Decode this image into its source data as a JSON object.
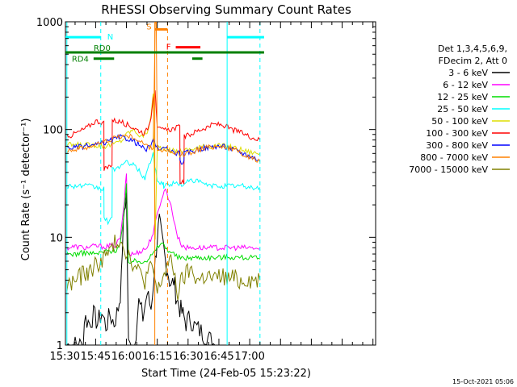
{
  "chart_data": {
    "type": "line",
    "title": "RHESSI Observing Summary Count Rates",
    "xlabel": "Start Time (24-Feb-05 15:23:22)",
    "ylabel": "Count Rate (s⁻¹ detector⁻¹)",
    "yscale": "log",
    "ylim": [
      1,
      1000
    ],
    "xlim_minutes": [
      15.3,
      166.3
    ],
    "x_unit": "minutes after 15:15",
    "x_ticks": [
      {
        "label": "15:30",
        "value": 15
      },
      {
        "label": "15:45",
        "value": 30
      },
      {
        "label": "16:00",
        "value": 45
      },
      {
        "label": "16:15",
        "value": 60
      },
      {
        "label": "16:30",
        "value": 75
      },
      {
        "label": "16:45",
        "value": 90
      },
      {
        "label": "17:00",
        "value": 105
      }
    ],
    "y_ticks": [
      {
        "label": "1",
        "value": 1
      },
      {
        "label": "10",
        "value": 10
      },
      {
        "label": "100",
        "value": 100
      },
      {
        "label": "1000",
        "value": 1000
      }
    ],
    "legend_header": [
      "Det 1,3,4,5,6,9,",
      "FDecim 2, Att 0"
    ],
    "series": [
      {
        "name": "3 - 6 keV",
        "color": "#000000",
        "x": [
          16,
          20,
          24,
          24.5,
          27,
          29,
          31,
          33,
          35,
          37,
          39,
          41,
          42,
          42.5,
          43,
          44,
          45,
          46,
          49,
          51,
          53,
          55,
          57,
          59,
          60,
          61,
          62,
          63,
          64,
          65,
          66,
          67,
          68,
          69,
          70,
          71,
          72,
          73,
          74,
          76,
          78,
          80,
          82,
          84,
          86,
          88,
          90
        ],
        "y": [
          1,
          1,
          1,
          1.8,
          1.6,
          1.9,
          1.6,
          2,
          1.5,
          1.9,
          1.6,
          2.2,
          3,
          4,
          8,
          18,
          25,
          1,
          1,
          2.5,
          1.8,
          3,
          2.2,
          6,
          10,
          14,
          10,
          8,
          6,
          5,
          4,
          3.5,
          4,
          3,
          2.5,
          2.2,
          2,
          1.8,
          1.6,
          1.8,
          1.5,
          1.4,
          1.3,
          1.2,
          1.1,
          1,
          1
        ]
      },
      {
        "name": "6 - 12 keV",
        "color": "#ff00ff",
        "x": [
          16,
          20,
          25,
          30,
          35,
          40,
          42,
          43,
          44,
          45,
          46,
          49,
          52,
          55,
          58,
          60,
          62,
          64,
          66,
          68,
          70,
          72,
          74,
          76,
          78,
          80,
          82,
          84,
          86,
          88,
          90,
          95,
          100,
          105,
          110
        ],
        "y": [
          8,
          8.2,
          8,
          8.3,
          8.2,
          8.5,
          10,
          14,
          22,
          40,
          7,
          7,
          7.5,
          8,
          11,
          16,
          23,
          28,
          22,
          15,
          10,
          8.5,
          8,
          8,
          8,
          8,
          8,
          8,
          8,
          8,
          8,
          8,
          8,
          8,
          7.8
        ]
      },
      {
        "name": "12 - 25 keV",
        "color": "#00dd00",
        "x": [
          16,
          20,
          25,
          30,
          35,
          40,
          42,
          43,
          44,
          45,
          46,
          49,
          52,
          55,
          58,
          60,
          62,
          64,
          66,
          68,
          70,
          72,
          74,
          76,
          80,
          85,
          90,
          95,
          100,
          105,
          110
        ],
        "y": [
          7,
          7,
          7.2,
          7,
          7.4,
          7.6,
          9,
          12,
          18,
          30,
          6,
          6,
          6,
          6.2,
          7,
          8,
          9,
          8,
          7.5,
          7,
          6.5,
          6.4,
          6.4,
          6.5,
          6.5,
          6.5,
          6.5,
          6.6,
          6.5,
          6.5,
          6.3
        ]
      },
      {
        "name": "25 - 50 keV",
        "color": "#00ffff",
        "x": [
          16,
          20,
          25,
          30,
          34,
          34.1,
          36,
          38,
          38.1,
          42,
          46,
          50,
          54,
          56,
          58,
          60,
          62,
          63,
          63.1,
          66,
          70,
          73,
          76,
          79,
          82,
          85,
          89,
          93,
          97,
          101,
          105,
          110
        ],
        "y": [
          30,
          30,
          30,
          29,
          28,
          15,
          14,
          15,
          42,
          46,
          50,
          44,
          35,
          47,
          58,
          33,
          32,
          32,
          30,
          31,
          32,
          30,
          35,
          33,
          32,
          30,
          30,
          30,
          30,
          30,
          29,
          29
        ]
      },
      {
        "name": "50 - 100 keV",
        "color": "#dddd00",
        "x": [
          16,
          25,
          30,
          34,
          34.1,
          37,
          40,
          43,
          46,
          49,
          52,
          55,
          57,
          58,
          59,
          60,
          61,
          62,
          63,
          66,
          70,
          75,
          80,
          85,
          90,
          95,
          100,
          105,
          110
        ],
        "y": [
          72,
          72,
          72,
          70,
          70,
          72,
          75,
          80,
          95,
          100,
          85,
          95,
          130,
          220,
          10,
          70,
          68,
          68,
          65,
          64,
          63,
          65,
          68,
          70,
          71,
          70,
          66,
          62,
          60
        ]
      },
      {
        "name": "100 - 300 keV",
        "color": "#ff0000",
        "x": [
          16,
          18,
          20,
          22,
          24,
          26,
          28,
          30,
          32,
          34,
          34.1,
          38,
          38.1,
          42,
          46,
          50,
          54,
          56,
          57,
          58,
          59,
          60,
          62,
          64,
          66,
          68,
          70,
          71,
          71.1,
          73,
          73.1,
          76,
          80,
          84,
          88,
          92,
          96,
          100,
          104,
          108,
          110
        ],
        "y": [
          90,
          88,
          92,
          95,
          100,
          105,
          112,
          120,
          118,
          115,
          42,
          48,
          122,
          118,
          110,
          100,
          92,
          110,
          135,
          200,
          240,
          100,
          100,
          98,
          100,
          102,
          105,
          105,
          33,
          33,
          85,
          90,
          98,
          105,
          112,
          110,
          100,
          95,
          88,
          82,
          80
        ]
      },
      {
        "name": "300 - 800 keV",
        "color": "#0000ff",
        "x": [
          16,
          20,
          25,
          30,
          34,
          38,
          42,
          46,
          50,
          54,
          56,
          58,
          60,
          62,
          64,
          66,
          68,
          70,
          71,
          71.1,
          73,
          73.1,
          76,
          80,
          84,
          88,
          92,
          96,
          100,
          104,
          108,
          110
        ],
        "y": [
          68,
          68,
          70,
          72,
          75,
          80,
          85,
          82,
          75,
          65,
          68,
          78,
          68,
          67,
          66,
          64,
          62,
          60,
          60,
          50,
          50,
          60,
          62,
          66,
          68,
          70,
          70,
          66,
          62,
          58,
          54,
          52
        ]
      },
      {
        "name": "800 - 7000 keV",
        "color": "#ff8000",
        "x": [
          16,
          20,
          25,
          30,
          35,
          40,
          45,
          50,
          55,
          58,
          59,
          59.5,
          60,
          62,
          65,
          68,
          71,
          74,
          77,
          80,
          84,
          88,
          92,
          96,
          100,
          104,
          108,
          110
        ],
        "y": [
          65,
          65,
          68,
          72,
          78,
          85,
          88,
          82,
          70,
          65,
          1000,
          1000,
          66,
          64,
          62,
          60,
          58,
          60,
          62,
          65,
          68,
          70,
          70,
          66,
          62,
          56,
          52,
          50
        ]
      },
      {
        "name": "7000 - 15000 keV",
        "color": "#808000",
        "x": [
          16,
          20,
          24,
          28,
          32,
          36,
          38,
          40,
          42,
          44,
          46,
          48,
          50,
          52,
          54,
          56,
          58,
          60,
          62,
          64,
          66,
          68,
          70,
          72,
          74,
          76,
          78,
          80,
          82,
          84,
          86,
          88,
          90,
          92,
          94,
          96,
          98,
          100,
          102,
          104,
          106,
          108,
          110
        ],
        "y": [
          3.5,
          4,
          4.5,
          5,
          6,
          7,
          8,
          9,
          10,
          8,
          7,
          6,
          5,
          4.5,
          4,
          5,
          5,
          3,
          4,
          5,
          6,
          5,
          3,
          4,
          4.5,
          5,
          4.5,
          4,
          4.2,
          4.5,
          4.2,
          4,
          4.3,
          4.4,
          4,
          4.2,
          4.1,
          3.9,
          4,
          4.2,
          4,
          4,
          4
        ]
      }
    ],
    "annotations": [
      {
        "label": "N",
        "color": "#00ffff",
        "x_start": 15.3,
        "x_end": 32.5,
        "y": 720
      },
      {
        "label": "",
        "color": "#00ffff",
        "x_start": 94,
        "x_end": 112,
        "y": 720
      },
      {
        "label": "S",
        "color": "#ff8000",
        "x_start": 58.8,
        "x_end": 65,
        "y": 850
      },
      {
        "label": "F",
        "color": "#ff0000",
        "x_start": 69,
        "x_end": 81,
        "y": 580
      },
      {
        "label": "RD0",
        "color": "#008000",
        "x_start": 15.3,
        "x_end": 112,
        "y": 520
      },
      {
        "label": "RD4",
        "color": "#008000",
        "x_start": 29,
        "x_end": 39,
        "y": 455
      },
      {
        "label": "",
        "color": "#008000",
        "x_start": 77,
        "x_end": 82,
        "y": 455
      }
    ],
    "time_markers": [
      {
        "color": "#00ffff",
        "x": 16,
        "style": "solid"
      },
      {
        "color": "#00ffff",
        "x": 32.5,
        "style": "dashed"
      },
      {
        "color": "#00ffff",
        "x": 94,
        "style": "solid"
      },
      {
        "color": "#00ffff",
        "x": 110,
        "style": "dashed"
      },
      {
        "color": "#ff8000",
        "x": 58.8,
        "style": "solid"
      },
      {
        "color": "#ff8000",
        "x": 65,
        "style": "dashed"
      }
    ]
  },
  "footer": {
    "timestamp": "15-Oct-2021 05:06"
  }
}
